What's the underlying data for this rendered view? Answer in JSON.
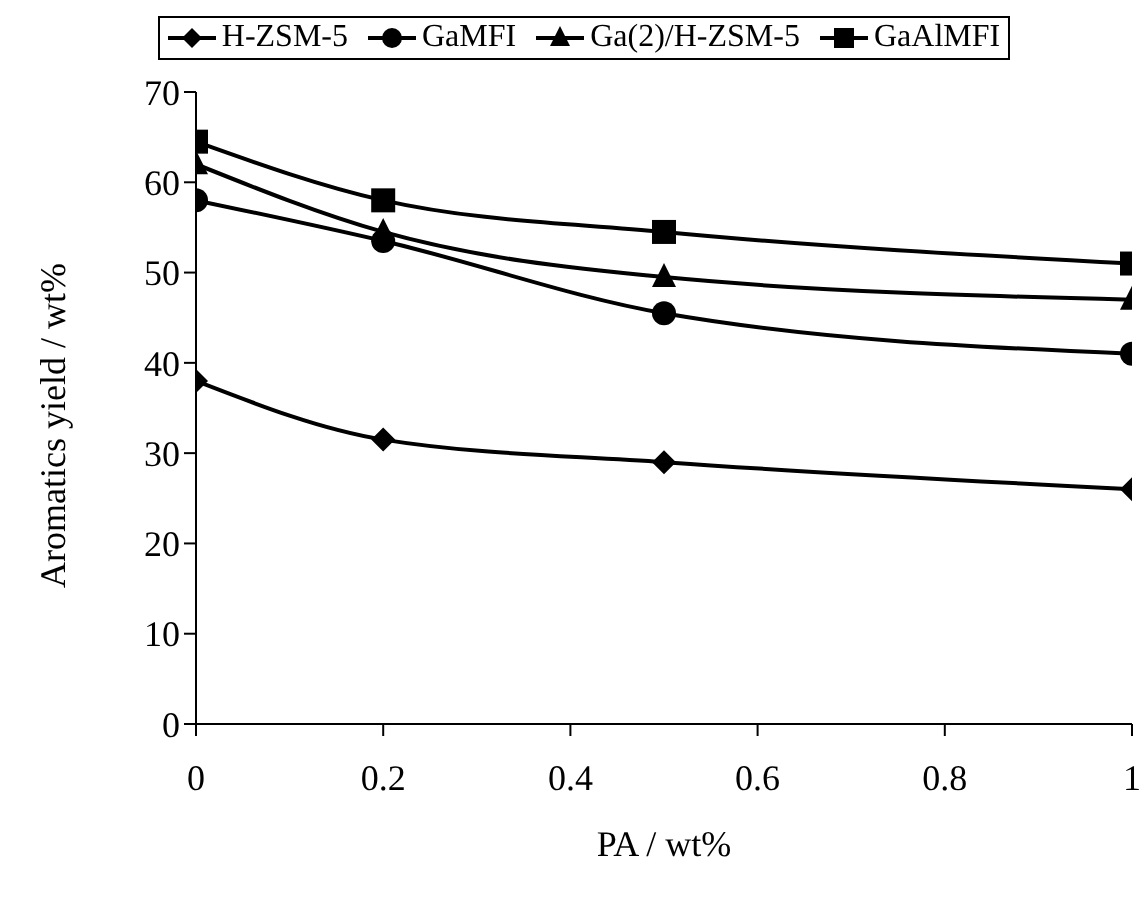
{
  "chart_data": {
    "type": "line",
    "xlabel": "PA / wt%",
    "ylabel": "Aromatics yield / wt%",
    "x": [
      0,
      0.2,
      0.5,
      1
    ],
    "series": [
      {
        "name": "H-ZSM-5",
        "color": "#000000",
        "marker": "diamond",
        "values": [
          38,
          31.5,
          29,
          26
        ]
      },
      {
        "name": "GaMFI",
        "color": "#000000",
        "marker": "circle",
        "values": [
          58,
          53.5,
          45.5,
          41
        ]
      },
      {
        "name": "Ga(2)/H-ZSM-5",
        "color": "#000000",
        "marker": "triangle",
        "values": [
          62,
          54.5,
          49.5,
          47
        ]
      },
      {
        "name": "GaAlMFI",
        "color": "#000000",
        "marker": "square",
        "values": [
          64.5,
          58,
          54.5,
          51
        ]
      }
    ],
    "xlim": [
      0,
      1
    ],
    "xticks": [
      0,
      0.2,
      0.4,
      0.6,
      0.8,
      1
    ],
    "ylim": [
      0,
      70
    ],
    "yticks": [
      0,
      10,
      20,
      30,
      40,
      50,
      60,
      70
    ],
    "grid": false,
    "legend": "top",
    "line_style": "solid"
  }
}
